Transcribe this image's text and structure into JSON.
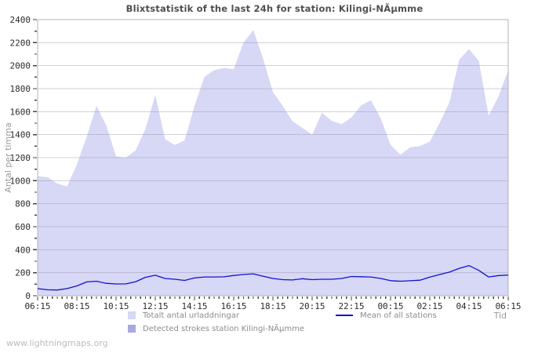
{
  "title": "Blixtstatistik of the last 24h for station: Kilingi-NÃµmme",
  "watermark": "www.lightningmaps.org",
  "colors": {
    "area_total": "#d7d7f6",
    "area_station": "#a9a9e0",
    "mean_line": "#1212cc",
    "grid": "#9a9ab0",
    "border": "#b5b5b5",
    "tick": "#444444",
    "title_text": "#4f4f4f"
  },
  "chart_data": {
    "type": "area",
    "title": "Blixtstatistik of the last 24h for station: Kilingi-NÃµmme",
    "xlabel": "Tid",
    "ylabel": "Antal per timma",
    "ylim": [
      0,
      2400
    ],
    "ytick_step": 200,
    "ytick_minor_step": 100,
    "grid": "horizontal",
    "legend_position": "bottom",
    "x_tick_labels": [
      "06:15",
      "08:15",
      "10:15",
      "12:15",
      "14:15",
      "16:15",
      "18:15",
      "20:15",
      "22:15",
      "00:15",
      "02:15",
      "04:15",
      "06:15"
    ],
    "x": [
      "06:15",
      "06:45",
      "07:15",
      "07:45",
      "08:15",
      "08:45",
      "09:15",
      "09:45",
      "10:15",
      "10:45",
      "11:15",
      "11:45",
      "12:15",
      "12:45",
      "13:15",
      "13:45",
      "14:15",
      "14:45",
      "15:15",
      "15:45",
      "16:15",
      "16:45",
      "17:15",
      "17:45",
      "18:15",
      "18:45",
      "19:15",
      "19:45",
      "20:15",
      "20:45",
      "21:15",
      "21:45",
      "22:15",
      "22:45",
      "23:15",
      "23:45",
      "00:15",
      "00:45",
      "01:15",
      "01:45",
      "02:15",
      "02:45",
      "03:15",
      "03:45",
      "04:15",
      "04:45",
      "05:15",
      "05:45",
      "06:15"
    ],
    "series": [
      {
        "name": "Totalt antal urladdningar",
        "type": "area",
        "color": "#d7d7f6",
        "values": [
          1040,
          1030,
          975,
          950,
          1140,
          1380,
          1650,
          1480,
          1210,
          1200,
          1265,
          1450,
          1745,
          1360,
          1310,
          1350,
          1650,
          1900,
          1960,
          1980,
          1970,
          2200,
          2310,
          2060,
          1770,
          1650,
          1515,
          1460,
          1400,
          1590,
          1520,
          1490,
          1550,
          1655,
          1700,
          1540,
          1310,
          1225,
          1290,
          1300,
          1340,
          1500,
          1680,
          2050,
          2145,
          2040,
          1565,
          1730,
          1960
        ]
      },
      {
        "name": "Detected strokes station Kilingi-NÃµmme",
        "type": "area",
        "color": "#a9a9e0",
        "values": [
          0,
          0,
          0,
          0,
          0,
          0,
          0,
          0,
          0,
          0,
          0,
          0,
          0,
          0,
          0,
          0,
          0,
          0,
          0,
          0,
          0,
          0,
          0,
          0,
          0,
          0,
          0,
          0,
          0,
          0,
          0,
          0,
          0,
          0,
          0,
          0,
          0,
          0,
          0,
          0,
          0,
          0,
          0,
          0,
          0,
          0,
          0,
          0,
          0
        ]
      },
      {
        "name": "Mean of all stations",
        "type": "line",
        "color": "#1212cc",
        "values": [
          62,
          52,
          50,
          62,
          85,
          120,
          126,
          108,
          102,
          103,
          122,
          160,
          178,
          150,
          143,
          133,
          155,
          163,
          163,
          164,
          176,
          185,
          190,
          170,
          150,
          140,
          137,
          148,
          140,
          143,
          143,
          150,
          167,
          165,
          163,
          150,
          131,
          126,
          130,
          135,
          162,
          184,
          205,
          238,
          262,
          220,
          163,
          175,
          180
        ]
      }
    ]
  }
}
